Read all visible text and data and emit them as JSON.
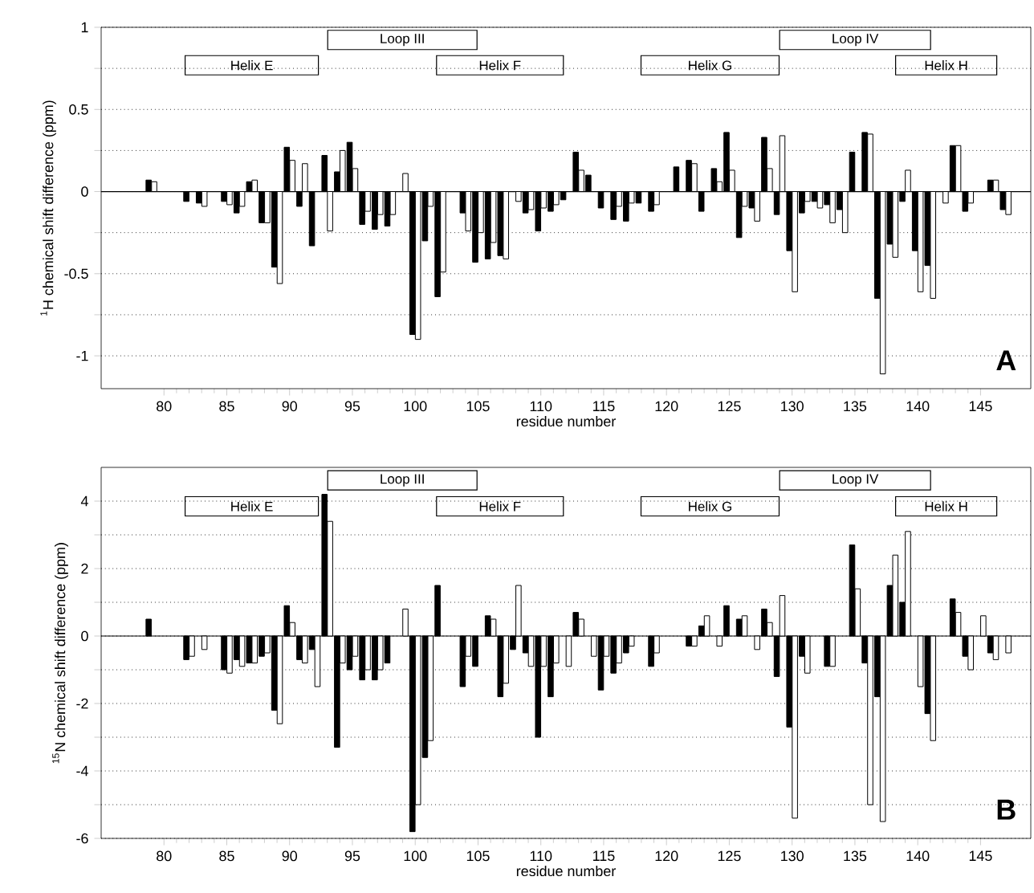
{
  "chart_data": [
    {
      "type": "bar",
      "ylabel": "$^{1}$H chemical shift difference (ppm)",
      "xlabel": "residue number",
      "annotations": [
        "A",
        "Helix E",
        "Loop III",
        "Helix F",
        "Helix G",
        "Loop IV",
        "Helix H"
      ],
      "x": [
        79,
        80,
        81,
        82,
        83,
        84,
        85,
        86,
        87,
        88,
        89,
        90,
        91,
        92,
        93,
        94,
        95,
        96,
        97,
        98,
        99,
        100,
        101,
        102,
        103,
        104,
        105,
        106,
        107,
        108,
        109,
        110,
        111,
        112,
        113,
        114,
        115,
        116,
        117,
        118,
        119,
        120,
        121,
        122,
        123,
        124,
        125,
        126,
        127,
        128,
        129,
        130,
        131,
        132,
        133,
        134,
        135,
        136,
        137,
        138,
        139,
        140,
        141,
        142,
        143,
        144,
        145,
        146,
        147
      ],
      "series": [
        {
          "color": "#000000",
          "values": [
            0.07,
            null,
            null,
            -0.06,
            -0.07,
            null,
            -0.06,
            -0.13,
            0.06,
            -0.19,
            -0.46,
            0.27,
            -0.09,
            -0.33,
            0.22,
            0.12,
            0.3,
            -0.2,
            -0.23,
            -0.21,
            null,
            -0.87,
            -0.3,
            -0.64,
            null,
            -0.13,
            -0.43,
            -0.41,
            -0.39,
            null,
            -0.13,
            -0.24,
            -0.12,
            -0.05,
            0.24,
            0.1,
            -0.1,
            -0.17,
            -0.18,
            -0.07,
            -0.12,
            null,
            0.15,
            0.19,
            -0.12,
            0.14,
            0.36,
            -0.28,
            -0.1,
            0.33,
            -0.14,
            -0.36,
            -0.13,
            -0.06,
            -0.08,
            -0.11,
            0.24,
            0.36,
            -0.65,
            -0.32,
            -0.06,
            -0.36,
            -0.45,
            null,
            0.28,
            -0.12,
            null,
            0.07,
            -0.11
          ]
        },
        {
          "color": "#ffffff",
          "values": [
            0.06,
            null,
            null,
            null,
            -0.09,
            null,
            -0.08,
            -0.09,
            0.07,
            -0.19,
            -0.56,
            0.19,
            0.17,
            null,
            -0.24,
            0.25,
            0.14,
            -0.12,
            -0.14,
            -0.14,
            0.11,
            -0.9,
            -0.09,
            -0.49,
            null,
            -0.24,
            -0.25,
            -0.31,
            -0.41,
            -0.06,
            -0.11,
            -0.1,
            -0.08,
            null,
            0.13,
            null,
            null,
            -0.09,
            -0.07,
            null,
            -0.08,
            null,
            null,
            0.17,
            null,
            0.06,
            0.13,
            -0.09,
            -0.18,
            0.14,
            0.34,
            -0.61,
            -0.06,
            -0.1,
            -0.19,
            -0.25,
            null,
            0.35,
            -1.11,
            -0.4,
            0.13,
            -0.61,
            -0.65,
            -0.07,
            0.28,
            -0.07,
            null,
            0.07,
            -0.14
          ]
        }
      ],
      "xlim": [
        75,
        149
      ],
      "xticks": [
        80,
        85,
        90,
        95,
        100,
        105,
        110,
        115,
        120,
        125,
        130,
        135,
        140,
        145
      ],
      "ylim": [
        -1.2,
        1
      ],
      "yticks": [
        -1,
        {
          "value": -0.75,
          "label": null
        },
        -0.5,
        {
          "value": -0.25,
          "label": null
        },
        0,
        {
          "value": 0.25,
          "label": null
        },
        0.5,
        {
          "value": 0.75,
          "label": null
        },
        1
      ],
      "grid": "y"
    },
    {
      "type": "bar",
      "ylabel": "$^{15}$N chemical shift difference (ppm)",
      "xlabel": "residue number",
      "annotations": [
        "B",
        "Helix E",
        "Loop III",
        "Helix F",
        "Helix G",
        "Loop IV",
        "Helix H"
      ],
      "x": [
        79,
        80,
        81,
        82,
        83,
        84,
        85,
        86,
        87,
        88,
        89,
        90,
        91,
        92,
        93,
        94,
        95,
        96,
        97,
        98,
        99,
        100,
        101,
        102,
        103,
        104,
        105,
        106,
        107,
        108,
        109,
        110,
        111,
        112,
        113,
        114,
        115,
        116,
        117,
        118,
        119,
        120,
        121,
        122,
        123,
        124,
        125,
        126,
        127,
        128,
        129,
        130,
        131,
        132,
        133,
        134,
        135,
        136,
        137,
        138,
        139,
        140,
        141,
        142,
        143,
        144,
        145,
        146,
        147
      ],
      "series": [
        {
          "color": "#000000",
          "values": [
            0.5,
            null,
            null,
            -0.7,
            null,
            null,
            -1.0,
            -0.7,
            -0.8,
            -0.6,
            -2.2,
            0.9,
            -0.7,
            -0.4,
            4.2,
            -3.3,
            -1.0,
            -1.3,
            -1.3,
            -0.8,
            null,
            -5.8,
            -3.6,
            1.5,
            null,
            -1.5,
            -0.9,
            0.6,
            -1.8,
            -0.4,
            -0.5,
            -3.0,
            -1.8,
            null,
            0.7,
            null,
            -1.6,
            -1.1,
            -0.5,
            null,
            -0.9,
            null,
            null,
            -0.3,
            0.3,
            null,
            0.9,
            0.5,
            null,
            0.8,
            -1.2,
            -2.7,
            -0.6,
            null,
            -0.9,
            null,
            2.7,
            -0.8,
            -1.8,
            1.5,
            1.0,
            null,
            -2.3,
            null,
            1.1,
            -0.6,
            null,
            -0.5,
            null
          ]
        },
        {
          "color": "#ffffff",
          "values": [
            null,
            null,
            null,
            -0.6,
            -0.4,
            null,
            -1.1,
            -0.9,
            -0.8,
            -0.5,
            -2.6,
            0.4,
            -0.8,
            -1.5,
            3.4,
            -0.8,
            -0.6,
            -1.0,
            -1.0,
            null,
            0.8,
            -5.0,
            -3.1,
            null,
            null,
            -0.6,
            null,
            0.5,
            -1.4,
            1.5,
            -0.9,
            -0.9,
            -0.8,
            -0.9,
            0.5,
            -0.6,
            -0.6,
            -0.8,
            -0.3,
            null,
            -0.5,
            null,
            null,
            -0.3,
            0.6,
            -0.3,
            null,
            0.6,
            -0.4,
            0.4,
            1.2,
            -5.4,
            -1.1,
            null,
            -0.9,
            null,
            1.4,
            -5.0,
            -5.5,
            2.4,
            3.1,
            -1.5,
            -3.1,
            null,
            0.7,
            -1.0,
            0.6,
            -0.7,
            -0.5
          ]
        }
      ],
      "xlim": [
        75,
        149
      ],
      "xticks": [
        80,
        85,
        90,
        95,
        100,
        105,
        110,
        115,
        120,
        125,
        130,
        135,
        140,
        145
      ],
      "ylim": [
        -6,
        5
      ],
      "yticks": [
        -6,
        {
          "value": -5,
          "label": null
        },
        -4,
        {
          "value": -3,
          "label": null
        },
        -2,
        {
          "value": -1,
          "label": null
        },
        0,
        {
          "value": 1,
          "label": null
        },
        2,
        {
          "value": 3,
          "label": null
        },
        4
      ],
      "grid": "y"
    }
  ]
}
